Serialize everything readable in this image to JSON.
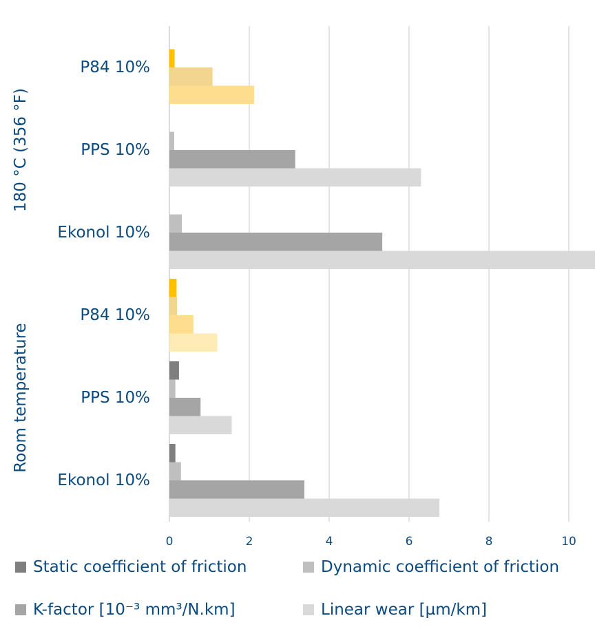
{
  "chart_data": {
    "type": "bar",
    "orientation": "horizontal",
    "title": "",
    "xlabel": "",
    "xlim": [
      0,
      10.7
    ],
    "xticks": [
      "0",
      "2",
      "4",
      "6",
      "8",
      "10"
    ],
    "grid": true,
    "legend_position": "bottom",
    "groups": [
      {
        "name": "180 °C (356 °F)",
        "categories": [
          {
            "label": "P84 10%",
            "values": {
              "static": null,
              "dynamic": 0.13,
              "kfactor": 1.08,
              "linear": 2.12
            },
            "colors": {
              "dynamic": "#ffc000",
              "kfactor": "#f2d68f",
              "linear": "#ffdd8f"
            }
          },
          {
            "label": "PPS 10%",
            "values": {
              "static": null,
              "dynamic": 0.12,
              "kfactor": 3.15,
              "linear": 6.3
            }
          },
          {
            "label": "Ekonol 10%",
            "values": {
              "static": null,
              "dynamic": 0.31,
              "kfactor": 5.33,
              "linear": 10.68
            }
          }
        ]
      },
      {
        "name": "Room temperature",
        "categories": [
          {
            "label": "P84 10%",
            "values": {
              "static": 0.18,
              "dynamic": 0.19,
              "kfactor": 0.6,
              "linear": 1.2
            },
            "colors": {
              "static": "#ffc000",
              "dynamic": "#f2d68f",
              "kfactor": "#ffdd8f",
              "linear": "#ffebb5"
            }
          },
          {
            "label": "PPS 10%",
            "values": {
              "static": 0.24,
              "dynamic": 0.15,
              "kfactor": 0.78,
              "linear": 1.56
            }
          },
          {
            "label": "Ekonol 10%",
            "values": {
              "static": 0.15,
              "dynamic": 0.29,
              "kfactor": 3.38,
              "linear": 6.76
            }
          }
        ]
      }
    ],
    "series": [
      {
        "key": "static",
        "name": "Static coefficient of friction",
        "color": "#7f7f7f"
      },
      {
        "key": "dynamic",
        "name": "Dynamic coefficient of friction",
        "color": "#bfbfbf"
      },
      {
        "key": "kfactor",
        "name": "K-factor [10⁻³ mm³/N.km]",
        "color": "#a5a5a5"
      },
      {
        "key": "linear",
        "name": "Linear wear [µm/km]",
        "color": "#d9d9d9"
      }
    ]
  }
}
